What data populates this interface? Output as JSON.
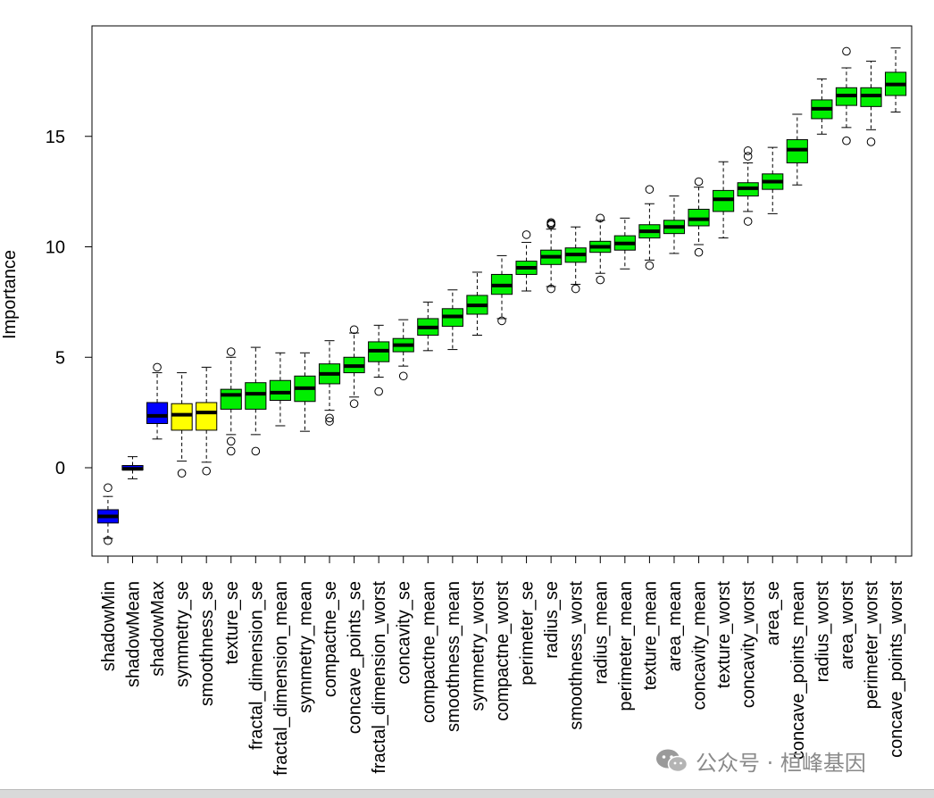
{
  "chart_data": {
    "type": "boxplot",
    "title": "",
    "xlabel": "",
    "ylabel": "Importance",
    "ylim": [
      -4.0,
      20.0
    ],
    "yticks": [
      0,
      5,
      10,
      15
    ],
    "colors": {
      "shadow": "#0000ff",
      "tentative": "#ffff00",
      "confirmed": "#00ee00"
    },
    "boxes": [
      {
        "name": "shadowMin",
        "status": "shadow",
        "whislo": -3.2,
        "q1": -2.5,
        "med": -2.2,
        "q3": -1.9,
        "whishi": -1.3,
        "outliers": [
          -3.3,
          -0.9
        ]
      },
      {
        "name": "shadowMean",
        "status": "shadow",
        "whislo": -0.5,
        "q1": -0.1,
        "med": -0.05,
        "q3": 0.1,
        "whishi": 0.5,
        "outliers": []
      },
      {
        "name": "shadowMax",
        "status": "shadow",
        "whislo": 1.3,
        "q1": 2.0,
        "med": 2.35,
        "q3": 2.95,
        "whishi": 4.3,
        "outliers": [
          4.55
        ]
      },
      {
        "name": "symmetry_se",
        "status": "tentative",
        "whislo": 0.3,
        "q1": 1.7,
        "med": 2.4,
        "q3": 2.9,
        "whishi": 4.3,
        "outliers": [
          -0.25
        ]
      },
      {
        "name": "smoothness_se",
        "status": "tentative",
        "whislo": 0.25,
        "q1": 1.7,
        "med": 2.5,
        "q3": 2.95,
        "whishi": 4.55,
        "outliers": [
          -0.15
        ]
      },
      {
        "name": "texture_se",
        "status": "confirmed",
        "whislo": 1.5,
        "q1": 2.65,
        "med": 3.3,
        "q3": 3.55,
        "whishi": 5.0,
        "outliers": [
          1.2,
          0.75,
          5.25
        ]
      },
      {
        "name": "fractal_dimension_se",
        "status": "confirmed",
        "whislo": 1.5,
        "q1": 2.65,
        "med": 3.35,
        "q3": 3.85,
        "whishi": 5.45,
        "outliers": [
          0.75
        ]
      },
      {
        "name": "fractal_dimension_mean",
        "status": "confirmed",
        "whislo": 1.9,
        "q1": 3.05,
        "med": 3.4,
        "q3": 3.95,
        "whishi": 5.2,
        "outliers": []
      },
      {
        "name": "symmetry_mean",
        "status": "confirmed",
        "whislo": 1.65,
        "q1": 3.0,
        "med": 3.6,
        "q3": 4.15,
        "whishi": 5.2,
        "outliers": []
      },
      {
        "name": "compactne_se",
        "status": "confirmed",
        "whislo": 2.6,
        "q1": 3.8,
        "med": 4.25,
        "q3": 4.7,
        "whishi": 5.75,
        "outliers": [
          2.25,
          2.1
        ]
      },
      {
        "name": "concave_points_se",
        "status": "confirmed",
        "whislo": 3.2,
        "q1": 4.3,
        "med": 4.6,
        "q3": 5.0,
        "whishi": 6.1,
        "outliers": [
          2.9,
          6.25
        ]
      },
      {
        "name": "fractal_dimension_worst",
        "status": "confirmed",
        "whislo": 4.1,
        "q1": 4.8,
        "med": 5.3,
        "q3": 5.7,
        "whishi": 6.45,
        "outliers": [
          3.45
        ]
      },
      {
        "name": "concavity_se",
        "status": "confirmed",
        "whislo": 4.6,
        "q1": 5.25,
        "med": 5.55,
        "q3": 5.85,
        "whishi": 6.7,
        "outliers": [
          4.15
        ]
      },
      {
        "name": "compactne_mean",
        "status": "confirmed",
        "whislo": 5.3,
        "q1": 6.0,
        "med": 6.35,
        "q3": 6.75,
        "whishi": 7.5,
        "outliers": []
      },
      {
        "name": "smoothness_mean",
        "status": "confirmed",
        "whislo": 5.35,
        "q1": 6.4,
        "med": 6.85,
        "q3": 7.2,
        "whishi": 8.05,
        "outliers": []
      },
      {
        "name": "symmetry_worst",
        "status": "confirmed",
        "whislo": 6.0,
        "q1": 6.95,
        "med": 7.35,
        "q3": 7.8,
        "whishi": 8.85,
        "outliers": []
      },
      {
        "name": "compactne_worst",
        "status": "confirmed",
        "whislo": 6.75,
        "q1": 7.85,
        "med": 8.25,
        "q3": 8.75,
        "whishi": 9.6,
        "outliers": [
          6.65
        ]
      },
      {
        "name": "perimeter_se",
        "status": "confirmed",
        "whislo": 8.0,
        "q1": 8.75,
        "med": 9.05,
        "q3": 9.35,
        "whishi": 10.2,
        "outliers": [
          10.55
        ]
      },
      {
        "name": "radius_se",
        "status": "confirmed",
        "whislo": 8.2,
        "q1": 9.2,
        "med": 9.55,
        "q3": 9.85,
        "whishi": 10.8,
        "outliers": [
          8.1,
          11.0,
          11.05,
          11.1
        ]
      },
      {
        "name": "smoothness_worst",
        "status": "confirmed",
        "whislo": 8.3,
        "q1": 9.3,
        "med": 9.65,
        "q3": 9.95,
        "whishi": 10.9,
        "outliers": [
          8.1
        ]
      },
      {
        "name": "radius_mean",
        "status": "confirmed",
        "whislo": 8.8,
        "q1": 9.75,
        "med": 10.0,
        "q3": 10.25,
        "whishi": 11.2,
        "outliers": [
          8.5,
          11.3
        ]
      },
      {
        "name": "perimeter_mean",
        "status": "confirmed",
        "whislo": 9.0,
        "q1": 9.85,
        "med": 10.15,
        "q3": 10.5,
        "whishi": 11.3,
        "outliers": []
      },
      {
        "name": "texture_mean",
        "status": "confirmed",
        "whislo": 9.4,
        "q1": 10.4,
        "med": 10.7,
        "q3": 11.0,
        "whishi": 11.95,
        "outliers": [
          9.15,
          12.6
        ]
      },
      {
        "name": "area_mean",
        "status": "confirmed",
        "whislo": 9.7,
        "q1": 10.6,
        "med": 10.9,
        "q3": 11.2,
        "whishi": 12.3,
        "outliers": []
      },
      {
        "name": "concavity_mean",
        "status": "confirmed",
        "whislo": 10.1,
        "q1": 10.95,
        "med": 11.25,
        "q3": 11.7,
        "whishi": 12.7,
        "outliers": [
          9.75,
          12.95
        ]
      },
      {
        "name": "texture_worst",
        "status": "confirmed",
        "whislo": 10.4,
        "q1": 11.6,
        "med": 12.15,
        "q3": 12.55,
        "whishi": 13.85,
        "outliers": []
      },
      {
        "name": "concavity_worst",
        "status": "confirmed",
        "whislo": 11.6,
        "q1": 12.3,
        "med": 12.65,
        "q3": 12.9,
        "whishi": 13.8,
        "outliers": [
          11.15,
          14.1,
          14.35
        ]
      },
      {
        "name": "area_se",
        "status": "confirmed",
        "whislo": 11.5,
        "q1": 12.6,
        "med": 12.95,
        "q3": 13.3,
        "whishi": 14.5,
        "outliers": []
      },
      {
        "name": "concave_points_mean",
        "status": "confirmed",
        "whislo": 12.8,
        "q1": 13.8,
        "med": 14.4,
        "q3": 14.85,
        "whishi": 16.0,
        "outliers": []
      },
      {
        "name": "radius_worst",
        "status": "confirmed",
        "whislo": 15.1,
        "q1": 15.8,
        "med": 16.25,
        "q3": 16.65,
        "whishi": 17.6,
        "outliers": []
      },
      {
        "name": "area_worst",
        "status": "confirmed",
        "whislo": 15.4,
        "q1": 16.4,
        "med": 16.85,
        "q3": 17.2,
        "whishi": 18.1,
        "outliers": [
          14.8,
          18.85
        ]
      },
      {
        "name": "perimeter_worst",
        "status": "confirmed",
        "whislo": 15.3,
        "q1": 16.35,
        "med": 16.85,
        "q3": 17.2,
        "whishi": 18.4,
        "outliers": [
          14.75
        ]
      },
      {
        "name": "concave_points_worst",
        "status": "confirmed",
        "whislo": 16.1,
        "q1": 16.85,
        "med": 17.35,
        "q3": 17.9,
        "whishi": 19.0,
        "outliers": []
      }
    ]
  },
  "watermark": {
    "text": "公众号 · 桓峰基因"
  }
}
